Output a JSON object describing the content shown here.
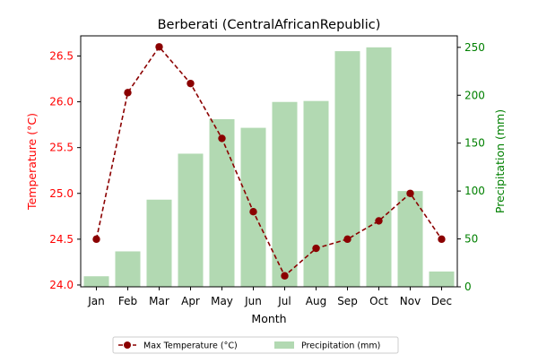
{
  "chart_data": {
    "type": "bar+line",
    "title": "Berberati (CentralAfricanRepublic)",
    "xlabel": "Month",
    "categories": [
      "Jan",
      "Feb",
      "Mar",
      "Apr",
      "May",
      "Jun",
      "Jul",
      "Aug",
      "Sep",
      "Oct",
      "Nov",
      "Dec"
    ],
    "y_left": {
      "label": "Temperature (°C)",
      "ylim": [
        23.98,
        26.72
      ],
      "ticks": [
        24.0,
        24.5,
        25.0,
        25.5,
        26.0,
        26.5
      ],
      "tick_labels": [
        "24.0",
        "24.5",
        "25.0",
        "25.5",
        "26.0",
        "26.5"
      ],
      "color": "#ff0000"
    },
    "y_right": {
      "label": "Precipitation (mm)",
      "ylim": [
        0,
        262
      ],
      "ticks": [
        0,
        50,
        100,
        150,
        200,
        250
      ],
      "tick_labels": [
        "0",
        "50",
        "100",
        "150",
        "200",
        "250"
      ],
      "color": "#008000"
    },
    "series": [
      {
        "name": "Max Temperature (°C)",
        "type": "line",
        "axis": "left",
        "color": "#8b0000",
        "values": [
          24.5,
          26.1,
          26.6,
          26.2,
          25.6,
          24.8,
          24.1,
          24.4,
          24.5,
          24.7,
          25.0,
          24.5
        ]
      },
      {
        "name": "Precipitation (mm)",
        "type": "bar",
        "axis": "right",
        "color": "#b2d9b2",
        "values": [
          11,
          37,
          91,
          139,
          175,
          166,
          193,
          194,
          246,
          250,
          100,
          16
        ]
      }
    ],
    "legend": {
      "placement": "bottom-center"
    },
    "grid": false
  }
}
